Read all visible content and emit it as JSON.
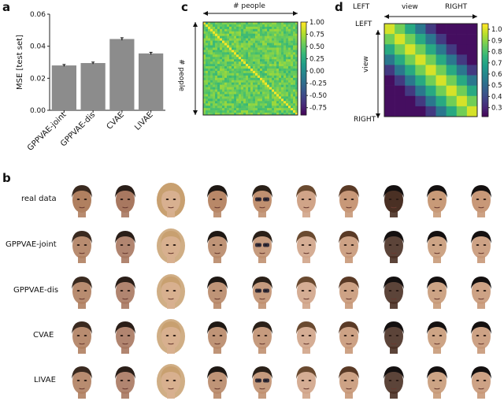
{
  "panels": {
    "a": "a",
    "b": "b",
    "c": "c",
    "d": "d"
  },
  "chart_a": {
    "type": "bar",
    "categories": [
      "GPPVAE-joint",
      "GPPVAE-dis",
      "CVAE",
      "LIVAE"
    ],
    "values": [
      0.028,
      0.0295,
      0.0445,
      0.0355
    ],
    "errors": [
      0.0006,
      0.0006,
      0.0008,
      0.0007
    ],
    "ylabel": "MSE [test set]",
    "ylim": [
      0,
      0.06
    ],
    "yticks": [
      "0.00",
      "0.02",
      "0.04",
      "0.06"
    ],
    "bar_color": "#8c8c8c"
  },
  "chart_c": {
    "type": "heatmap",
    "top_label": "# people",
    "side_label": "# people",
    "colorbar_ticks": [
      "1.00",
      "0.75",
      "0.50",
      "0.25",
      "0.00",
      "-0.25",
      "-0.50",
      "-0.75"
    ],
    "colorbar_range": [
      -0.9,
      1.0
    ]
  },
  "chart_d": {
    "type": "heatmap",
    "top_left": "LEFT",
    "top_mid": "view",
    "top_right": "RIGHT",
    "side_top": "LEFT",
    "side_mid": "view",
    "side_bottom": "RIGHT",
    "colorbar_ticks": [
      "1.0",
      "0.9",
      "0.8",
      "0.7",
      "0.6",
      "0.5",
      "0.4",
      "0.3"
    ],
    "colorbar_range": [
      0.22,
      1.05
    ]
  },
  "rows": [
    "real data",
    "GPPVAE-joint",
    "GPPVAE-dis",
    "CVAE",
    "LIVAE"
  ],
  "people": [
    {
      "skin": "#b08060",
      "hair": "#3a2a20",
      "long": false,
      "glasses": false
    },
    {
      "skin": "#a87860",
      "hair": "#2a1e18",
      "long": false,
      "glasses": false
    },
    {
      "skin": "#d8b090",
      "hair": "#c8a070",
      "long": true,
      "glasses": false
    },
    {
      "skin": "#b88868",
      "hair": "#1e1814",
      "long": false,
      "glasses": false
    },
    {
      "skin": "#c09070",
      "hair": "#2a2018",
      "long": false,
      "glasses": true
    },
    {
      "skin": "#d0a488",
      "hair": "#6a4a30",
      "long": false,
      "glasses": false
    },
    {
      "skin": "#c89878",
      "hair": "#5a3a26",
      "long": false,
      "glasses": false
    },
    {
      "skin": "#4a3024",
      "hair": "#141010",
      "long": false,
      "glasses": false
    },
    {
      "skin": "#c89a78",
      "hair": "#141010",
      "long": false,
      "glasses": false
    },
    {
      "skin": "#c89878",
      "hair": "#141010",
      "long": false,
      "glasses": false
    }
  ]
}
